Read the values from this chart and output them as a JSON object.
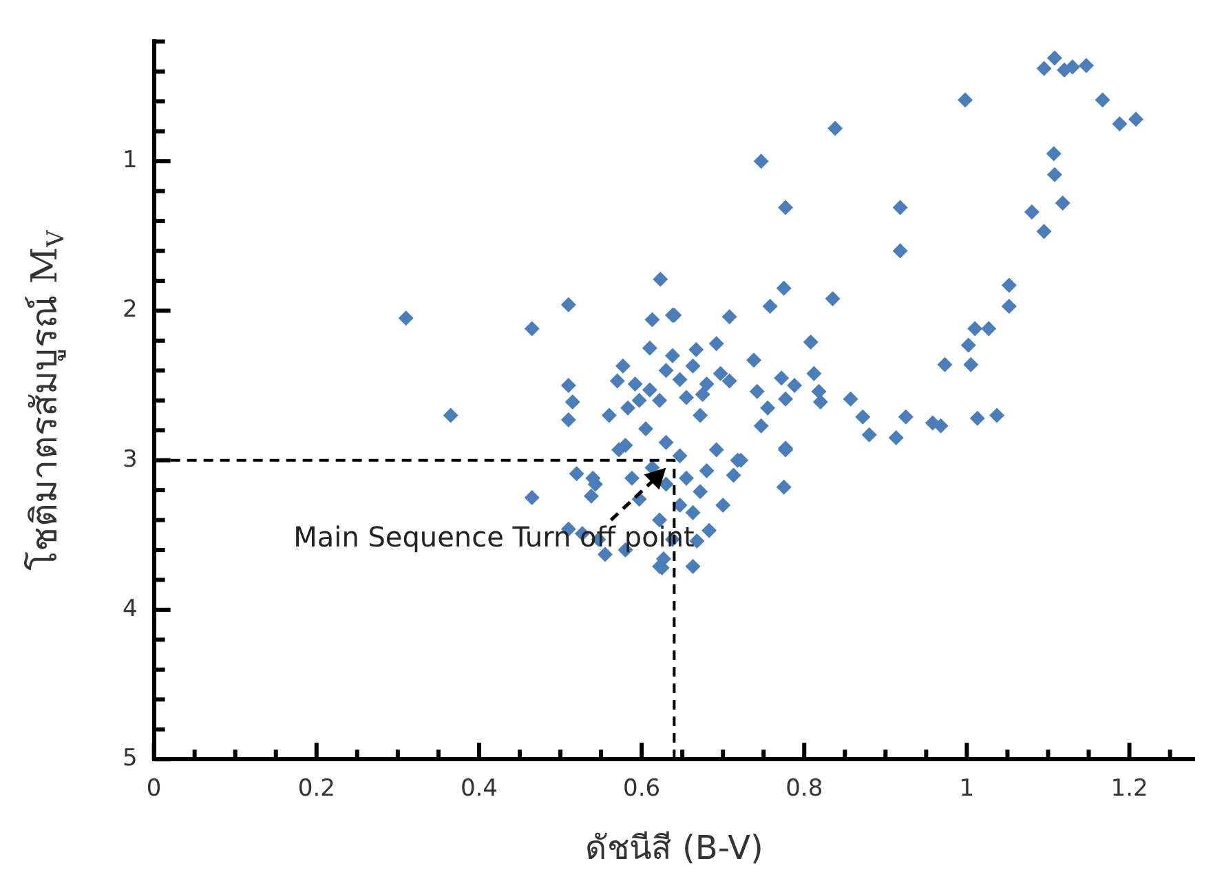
{
  "chart_data": {
    "type": "scatter",
    "xlabel": "ดัชนีสี (B-V)",
    "ylabel": "โชติมาตรสัมบูรณ์ M$_{V}$",
    "marker": "diamond",
    "grid": false,
    "legend": false,
    "xlim": [
      0,
      1.28
    ],
    "ylim": [
      5,
      0.2
    ],
    "xticks": [
      0,
      {
        "value": 0.05,
        "label": null
      },
      {
        "value": 0.1,
        "label": null
      },
      {
        "value": 0.15,
        "label": null
      },
      0.2,
      {
        "value": 0.25,
        "label": null
      },
      {
        "value": 0.3,
        "label": null
      },
      {
        "value": 0.35,
        "label": null
      },
      0.4,
      {
        "value": 0.45,
        "label": null
      },
      {
        "value": 0.5,
        "label": null
      },
      {
        "value": 0.55,
        "label": null
      },
      0.6,
      {
        "value": 0.65,
        "label": null
      },
      {
        "value": 0.7,
        "label": null
      },
      {
        "value": 0.75,
        "label": null
      },
      0.8,
      {
        "value": 0.85,
        "label": null
      },
      {
        "value": 0.9,
        "label": null
      },
      {
        "value": 0.95,
        "label": null
      },
      1,
      {
        "value": 1.05,
        "label": null
      },
      {
        "value": 1.1,
        "label": null
      },
      {
        "value": 1.15,
        "label": null
      },
      1.2,
      {
        "value": 1.25,
        "label": null
      }
    ],
    "yticks": [
      {
        "value": 0.2,
        "label": null
      },
      {
        "value": 0.4,
        "label": null
      },
      {
        "value": 0.6,
        "label": null
      },
      {
        "value": 0.8,
        "label": null
      },
      1,
      {
        "value": 1.2,
        "label": null
      },
      {
        "value": 1.4,
        "label": null
      },
      {
        "value": 1.6,
        "label": null
      },
      {
        "value": 1.8,
        "label": null
      },
      2,
      {
        "value": 2.2,
        "label": null
      },
      {
        "value": 2.4,
        "label": null
      },
      {
        "value": 2.6,
        "label": null
      },
      {
        "value": 2.8,
        "label": null
      },
      3,
      {
        "value": 3.2,
        "label": null
      },
      {
        "value": 3.4,
        "label": null
      },
      {
        "value": 3.6,
        "label": null
      },
      {
        "value": 3.8,
        "label": null
      },
      4,
      {
        "value": 4.2,
        "label": null
      },
      {
        "value": 4.4,
        "label": null
      },
      {
        "value": 4.6,
        "label": null
      },
      {
        "value": 4.8,
        "label": null
      },
      5
    ],
    "annotations": [
      {
        "text": "Main Sequence Turn off point",
        "x": 0.63,
        "y": 3.05
      }
    ],
    "series": [
      {
        "color": "#4a7ebb",
        "x": [
          0.31,
          0.365,
          0.465,
          0.51,
          0.623,
          0.613,
          0.64,
          0.61,
          0.51,
          0.515,
          0.51,
          0.56,
          0.57,
          0.58,
          0.52,
          0.54,
          0.747,
          0.838,
          0.998,
          0.777,
          0.918,
          0.918,
          1.095,
          1.108,
          1.12,
          1.13,
          1.147,
          1.167,
          1.188,
          1.208,
          1.107,
          1.108,
          1.118,
          1.08,
          1.095,
          1.052,
          1.052,
          1.01,
          1.027,
          1.002,
          1.005,
          0.973,
          1.013,
          1.037,
          0.958,
          0.968,
          0.913,
          0.925,
          0.88,
          0.872,
          0.857,
          0.835,
          0.775,
          0.758,
          0.808,
          0.812,
          0.82,
          0.818,
          0.777,
          0.788,
          0.772,
          0.755,
          0.747,
          0.742,
          0.738,
          0.777,
          0.708,
          0.692,
          0.708,
          0.667,
          0.638,
          0.672,
          0.675,
          0.718,
          0.713,
          0.777,
          0.775,
          0.7,
          0.683,
          0.668,
          0.663,
          0.627,
          0.622,
          0.722,
          0.465,
          0.543,
          0.538,
          0.51,
          0.527,
          0.555,
          0.58,
          0.547,
          0.625,
          0.61,
          0.63,
          0.647,
          0.663,
          0.597,
          0.583,
          0.622,
          0.68,
          0.697,
          0.605,
          0.63,
          0.647,
          0.613,
          0.588,
          0.597,
          0.63,
          0.655,
          0.672,
          0.647,
          0.622,
          0.68,
          0.572,
          0.577,
          0.638,
          0.655,
          0.592,
          0.692,
          0.663,
          0.638
        ],
        "values": [
          2.05,
          2.7,
          2.12,
          1.96,
          1.79,
          2.06,
          2.03,
          2.25,
          2.5,
          2.61,
          2.73,
          2.7,
          2.47,
          2.9,
          3.09,
          3.12,
          1.0,
          0.78,
          0.59,
          1.31,
          1.31,
          1.6,
          0.38,
          0.31,
          0.39,
          0.37,
          0.36,
          0.59,
          0.75,
          0.72,
          0.95,
          1.09,
          1.28,
          1.34,
          1.47,
          1.83,
          1.97,
          2.12,
          2.12,
          2.23,
          2.36,
          2.36,
          2.72,
          2.7,
          2.75,
          2.77,
          2.85,
          2.71,
          2.83,
          2.71,
          2.59,
          1.92,
          1.85,
          1.97,
          2.21,
          2.42,
          2.61,
          2.54,
          2.59,
          2.5,
          2.45,
          2.65,
          2.77,
          2.54,
          2.33,
          2.92,
          2.04,
          2.22,
          2.47,
          2.26,
          2.03,
          2.7,
          2.56,
          3.0,
          3.1,
          2.93,
          3.18,
          3.3,
          3.47,
          3.54,
          3.71,
          3.66,
          3.71,
          3.0,
          3.25,
          3.16,
          3.24,
          3.46,
          3.49,
          3.63,
          3.6,
          3.53,
          3.72,
          2.53,
          2.4,
          2.46,
          2.37,
          2.6,
          2.65,
          2.6,
          2.49,
          2.42,
          2.79,
          2.88,
          2.97,
          3.05,
          3.12,
          3.26,
          3.16,
          3.12,
          3.21,
          3.3,
          3.4,
          3.07,
          2.93,
          2.37,
          2.3,
          2.58,
          2.49,
          2.93,
          3.35,
          3.53
        ]
      },
      {
        "type": "line",
        "color": "#000000",
        "line_style": "dashed",
        "marker": "none",
        "x": [
          0,
          0.64,
          0.64
        ],
        "values": [
          3,
          3,
          5
        ]
      }
    ]
  }
}
